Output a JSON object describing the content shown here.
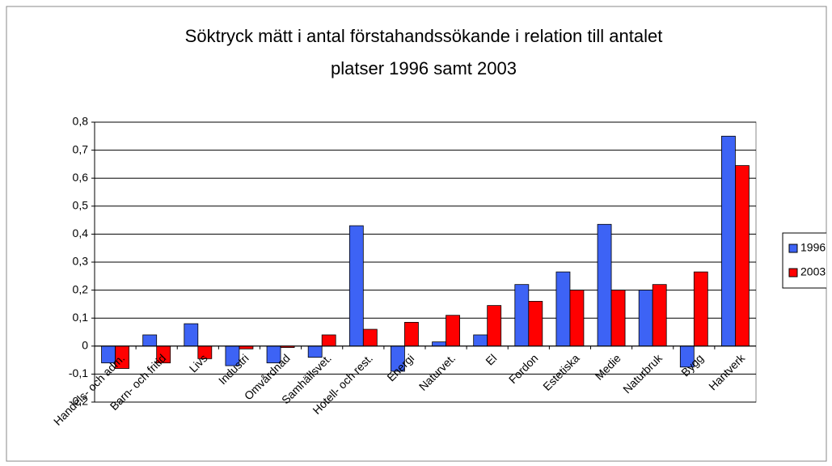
{
  "chart_data": {
    "type": "bar",
    "title": [
      "Söktryck mätt i antal förstahandssökande i relation till antalet",
      "platser 1996 samt 2003"
    ],
    "categories": [
      "Handels- och adm.",
      "Barn- och fritid",
      "Livs",
      "Industri",
      "Omvårdnad",
      "Samhällsvet.",
      "Hotell- och rest.",
      "Energi",
      "Naturvet.",
      "El",
      "Fordon",
      "Estetiska",
      "Medie",
      "Naturbruk",
      "Bygg",
      "Hantverk"
    ],
    "series": [
      {
        "name": "1996",
        "color": "#3d63f5",
        "values": [
          -0.06,
          0.04,
          0.08,
          -0.07,
          -0.06,
          -0.04,
          0.43,
          -0.09,
          0.015,
          0.04,
          0.22,
          0.265,
          0.435,
          0.2,
          -0.075,
          0.75
        ]
      },
      {
        "name": "2003",
        "color": "#ff0000",
        "values": [
          -0.08,
          -0.06,
          -0.045,
          -0.01,
          -0.005,
          0.04,
          0.06,
          0.085,
          0.11,
          0.145,
          0.16,
          0.2,
          0.2,
          0.22,
          0.265,
          0.645
        ]
      }
    ],
    "ylim": [
      -0.2,
      0.8
    ],
    "yticks": [
      {
        "value": -0.2,
        "label": "-0,2"
      },
      {
        "value": -0.1,
        "label": "-0,1"
      },
      0,
      {
        "value": 0.1,
        "label": "0,1"
      },
      {
        "value": 0.2,
        "label": "0,2"
      },
      {
        "value": 0.3,
        "label": "0,3"
      },
      {
        "value": 0.4,
        "label": "0,4"
      },
      {
        "value": 0.5,
        "label": "0,5"
      },
      {
        "value": 0.6,
        "label": "0,6"
      },
      {
        "value": 0.7,
        "label": "0,7"
      },
      {
        "value": 0.8,
        "label": "0,8"
      }
    ],
    "grid": true,
    "legend": "right"
  }
}
